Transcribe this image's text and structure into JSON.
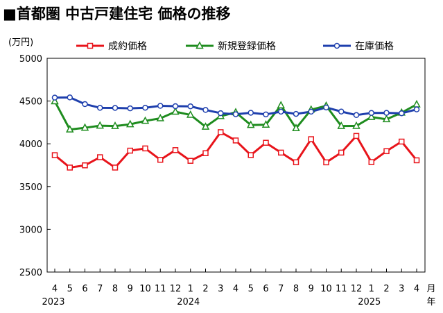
{
  "chart_data": {
    "type": "line",
    "title": "■首都圏 中古戸建住宅 価格の推移",
    "ylabel": "(万円)",
    "xlabel": "",
    "x_unit_label": "月",
    "year_unit_label": "年",
    "ylim": [
      2500,
      5000
    ],
    "yticks": [
      2500,
      3000,
      3500,
      4000,
      4500,
      5000
    ],
    "grid": false,
    "legend_position": "top",
    "categories": [
      "4",
      "5",
      "6",
      "7",
      "8",
      "9",
      "10",
      "11",
      "12",
      "1",
      "2",
      "3",
      "4",
      "5",
      "6",
      "7",
      "8",
      "9",
      "10",
      "11",
      "12",
      "1",
      "2",
      "3",
      "4"
    ],
    "year_labels": [
      {
        "index": 0,
        "label": "2023"
      },
      {
        "index": 9,
        "label": "2024"
      },
      {
        "index": 21,
        "label": "2025"
      }
    ],
    "series": [
      {
        "name": "成約価格",
        "color": "#e8141b",
        "marker": "square",
        "values": [
          3867,
          3722,
          3748,
          3843,
          3722,
          3920,
          3946,
          3813,
          3926,
          3801,
          3890,
          4136,
          4039,
          3868,
          4012,
          3897,
          3784,
          4054,
          3783,
          3897,
          4092,
          3786,
          3914,
          4026,
          3807
        ]
      },
      {
        "name": "新規登録価格",
        "color": "#1e8c1e",
        "marker": "triangle",
        "values": [
          4497,
          4167,
          4187,
          4212,
          4208,
          4228,
          4268,
          4298,
          4375,
          4338,
          4199,
          4323,
          4368,
          4220,
          4223,
          4449,
          4182,
          4399,
          4444,
          4208,
          4209,
          4313,
          4287,
          4364,
          4460
        ]
      },
      {
        "name": "在庫価格",
        "color": "#1e3fad",
        "marker": "circle",
        "values": [
          4540,
          4542,
          4464,
          4421,
          4420,
          4415,
          4422,
          4444,
          4440,
          4438,
          4396,
          4358,
          4346,
          4363,
          4344,
          4376,
          4350,
          4376,
          4425,
          4377,
          4336,
          4361,
          4362,
          4357,
          4402
        ]
      }
    ]
  }
}
